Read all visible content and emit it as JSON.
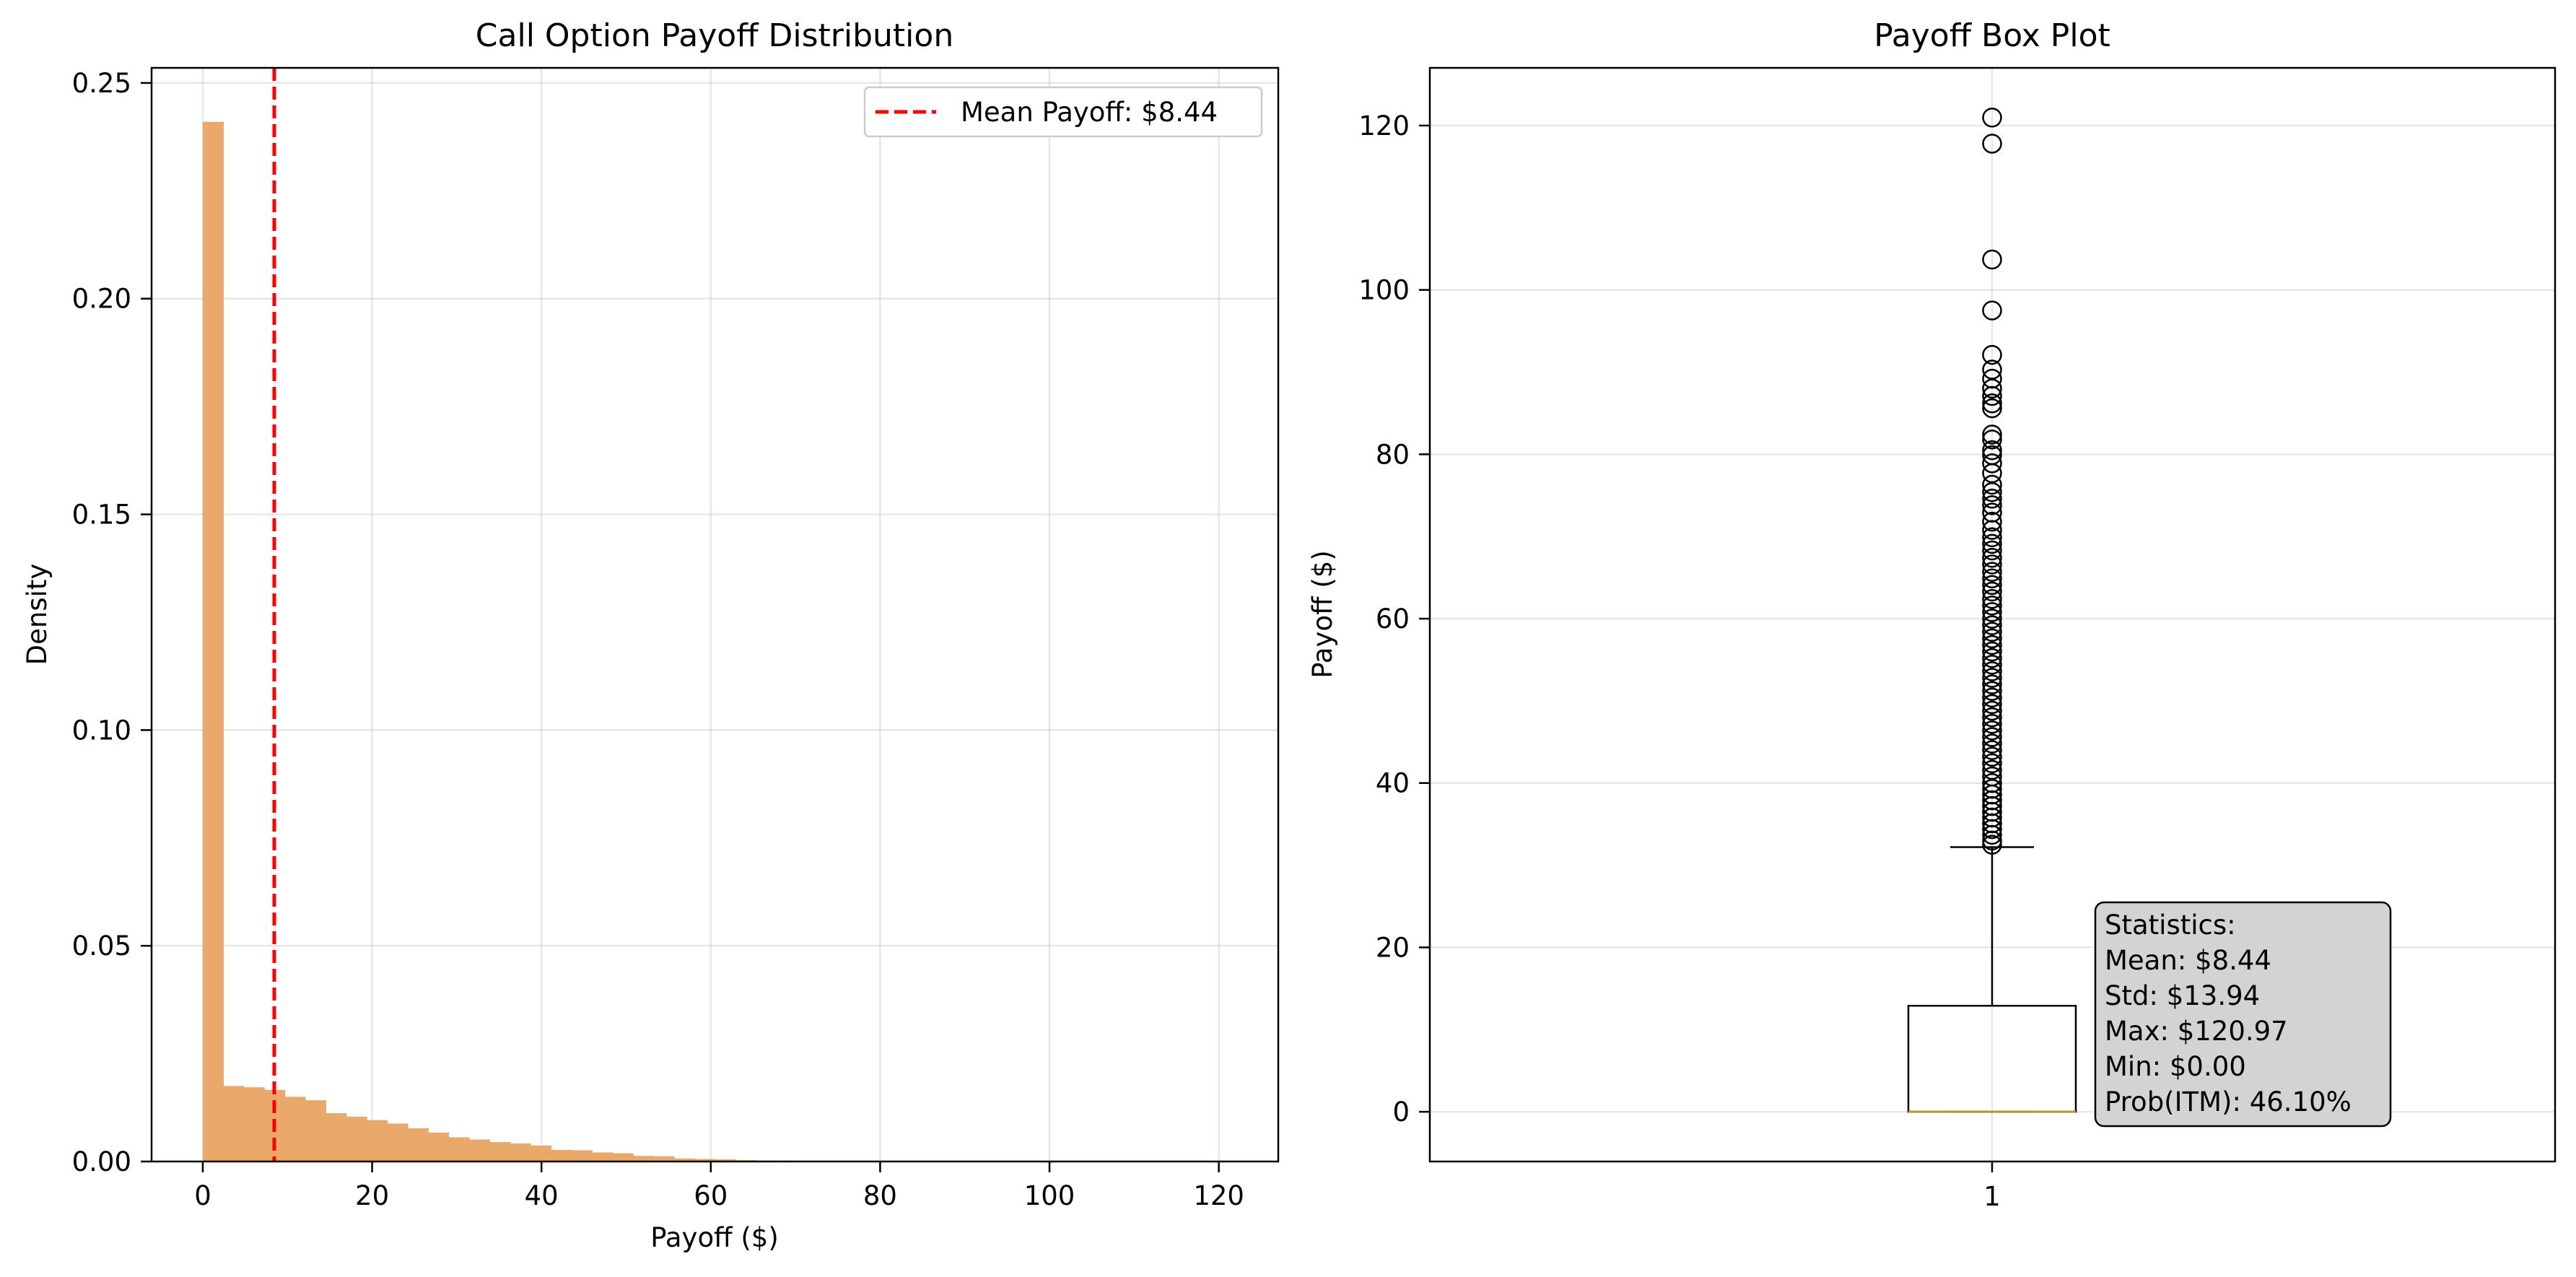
{
  "chart_data": [
    {
      "type": "bar",
      "title": "Call Option Payoff Distribution",
      "xlabel": "Payoff ($)",
      "ylabel": "Density",
      "xlim": [
        -6.05,
        127.02
      ],
      "ylim": [
        0,
        0.2535
      ],
      "xticks": [
        0,
        20,
        40,
        60,
        80,
        100,
        120
      ],
      "yticks": [
        0.0,
        0.05,
        0.1,
        0.15,
        0.2,
        0.25
      ],
      "grid": true,
      "bar_color": "#e8a96a",
      "bin_edges": [
        0,
        2.42,
        4.84,
        7.26,
        9.68,
        12.1,
        14.52,
        16.94,
        19.36,
        21.78,
        24.2,
        26.62,
        29.04,
        31.46,
        33.88,
        36.3,
        38.72,
        41.14,
        43.56,
        45.98,
        48.4,
        50.82,
        53.24,
        55.66,
        58.08,
        60.5,
        62.92,
        65.34,
        67.76,
        70.18,
        72.6
      ],
      "density": [
        0.241,
        0.0175,
        0.0172,
        0.0166,
        0.015,
        0.0142,
        0.0112,
        0.0104,
        0.0096,
        0.0088,
        0.0077,
        0.0067,
        0.0056,
        0.0051,
        0.0045,
        0.0042,
        0.0037,
        0.0027,
        0.0026,
        0.0021,
        0.0019,
        0.0013,
        0.0012,
        0.0007,
        0.0006,
        0.0005,
        0.0003,
        0.0002,
        0.0002,
        0.0001
      ],
      "mean_line": {
        "x": 8.44,
        "color": "#ff0000",
        "label": "Mean Payoff: $8.44"
      },
      "legend": {
        "position": "upper right",
        "entries": [
          "Mean Payoff: $8.44"
        ]
      }
    },
    {
      "type": "box",
      "title": "Payoff Box Plot",
      "xlabel": "",
      "ylabel": "Payoff ($)",
      "ylim": [
        -6.05,
        127.02
      ],
      "yticks": [
        0,
        20,
        40,
        60,
        80,
        100,
        120
      ],
      "xticks": [
        "1"
      ],
      "grid": true,
      "box": {
        "q1": 0,
        "median": 0,
        "q3": 12.9,
        "whisker_low": 0,
        "whisker_high": 32.2,
        "median_color": "#b8952a"
      },
      "outliers": [
        120.97,
        117.8,
        103.7,
        97.5,
        92.1,
        90.3,
        89.2,
        88.0,
        87.1,
        86.2,
        85.6,
        82.4,
        81.8,
        80.5,
        79.9,
        78.9,
        77.7,
        76.3,
        75.4,
        74.6,
        73.8,
        72.9,
        71.8,
        70.8,
        69.9,
        69.1,
        68.3,
        67.4,
        66.6,
        65.7,
        64.9,
        64.1,
        63.3,
        62.4,
        61.6,
        60.8,
        60.0,
        59.2,
        58.4,
        57.6,
        56.8,
        56.0,
        55.2,
        54.4,
        53.6,
        52.8,
        52.0,
        51.2,
        50.4,
        49.6,
        48.8,
        48.0,
        47.2,
        46.4,
        45.6,
        44.8,
        44.0,
        43.2,
        42.4,
        41.6,
        40.8,
        40.0,
        39.3,
        38.6,
        37.9,
        37.2,
        36.5,
        35.8,
        35.1,
        34.4,
        33.7,
        33.0,
        32.5
      ],
      "stats_box": {
        "lines": [
          "Statistics:",
          "Mean: $8.44",
          "Std: $13.94",
          "Max: $120.97",
          "Min: $0.00",
          "Prob(ITM): 46.10%"
        ],
        "facecolor": "#d3d3d3"
      }
    }
  ]
}
